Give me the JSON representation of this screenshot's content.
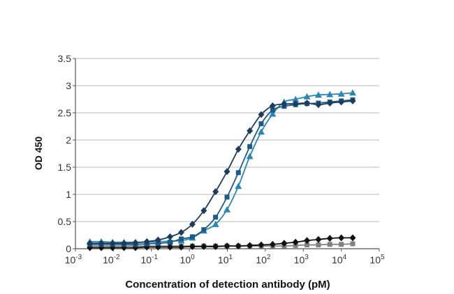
{
  "chart_data": {
    "type": "line",
    "title": "",
    "xlabel": "Concentration of detection antibody (pM)",
    "ylabel": "OD 450",
    "xscale": "log",
    "xlim": [
      0.001,
      100000
    ],
    "ylim": [
      0,
      3.5
    ],
    "grid": "horizontal",
    "legend": "none",
    "x_tick_labels": [
      {
        "base": "10",
        "exp": "-3",
        "value": 0.001
      },
      {
        "base": "10",
        "exp": "-2",
        "value": 0.01
      },
      {
        "base": "10",
        "exp": "-1",
        "value": 0.1
      },
      {
        "base": "10",
        "exp": "0",
        "value": 1
      },
      {
        "base": "10",
        "exp": "1",
        "value": 10
      },
      {
        "base": "10",
        "exp": "2",
        "value": 100
      },
      {
        "base": "10",
        "exp": "3",
        "value": 1000
      },
      {
        "base": "10",
        "exp": "4",
        "value": 10000
      },
      {
        "base": "10",
        "exp": "5",
        "value": 100000
      }
    ],
    "y_tick_labels": [
      "0",
      "0.5",
      "1",
      "1.5",
      "2",
      "2.5",
      "3",
      "3.5"
    ],
    "y_ticks": [
      0,
      0.5,
      1,
      1.5,
      2,
      2.5,
      3,
      3.5
    ],
    "x": [
      0.0024,
      0.0048,
      0.0095,
      0.019,
      0.038,
      0.076,
      0.15,
      0.31,
      0.61,
      1.2,
      2.4,
      4.9,
      9.8,
      19.5,
      39,
      78,
      156,
      313,
      625,
      1250,
      2500,
      5000,
      10000,
      20000
    ],
    "series": [
      {
        "name": "series-1-diamond",
        "marker": "diamond",
        "color": "#1e3d5e",
        "values": [
          0.1,
          0.1,
          0.1,
          0.1,
          0.11,
          0.13,
          0.16,
          0.22,
          0.3,
          0.45,
          0.7,
          1.05,
          1.42,
          1.83,
          2.17,
          2.47,
          2.63,
          2.66,
          2.67,
          2.68,
          2.65,
          2.68,
          2.7,
          2.72
        ]
      },
      {
        "name": "series-2-square",
        "marker": "square",
        "color": "#1b5b88",
        "values": [
          0.08,
          0.08,
          0.08,
          0.08,
          0.08,
          0.09,
          0.1,
          0.12,
          0.18,
          0.22,
          0.35,
          0.58,
          0.95,
          1.4,
          1.88,
          2.3,
          2.55,
          2.62,
          2.65,
          2.67,
          2.68,
          2.7,
          2.72,
          2.74
        ]
      },
      {
        "name": "series-3-triangle",
        "marker": "triangle",
        "color": "#2a86b4",
        "values": [
          0.13,
          0.13,
          0.12,
          0.12,
          0.12,
          0.12,
          0.13,
          0.14,
          0.15,
          0.2,
          0.33,
          0.45,
          0.72,
          1.15,
          1.7,
          2.15,
          2.48,
          2.7,
          2.75,
          2.8,
          2.83,
          2.84,
          2.85,
          2.87
        ]
      },
      {
        "name": "control-diamond",
        "marker": "diamond",
        "color": "#111111",
        "values": [
          0.02,
          0.02,
          0.02,
          0.02,
          0.02,
          0.03,
          0.03,
          0.03,
          0.03,
          0.04,
          0.04,
          0.04,
          0.05,
          0.05,
          0.06,
          0.07,
          0.08,
          0.1,
          0.12,
          0.15,
          0.17,
          0.19,
          0.2,
          0.2
        ]
      },
      {
        "name": "control-square",
        "marker": "square",
        "color": "#808080",
        "values": [
          0.05,
          0.05,
          0.05,
          0.05,
          0.05,
          0.05,
          0.05,
          0.05,
          0.05,
          0.05,
          0.05,
          0.05,
          0.05,
          0.05,
          0.05,
          0.05,
          0.05,
          0.05,
          0.06,
          0.07,
          0.07,
          0.08,
          0.08,
          0.09
        ]
      }
    ]
  }
}
